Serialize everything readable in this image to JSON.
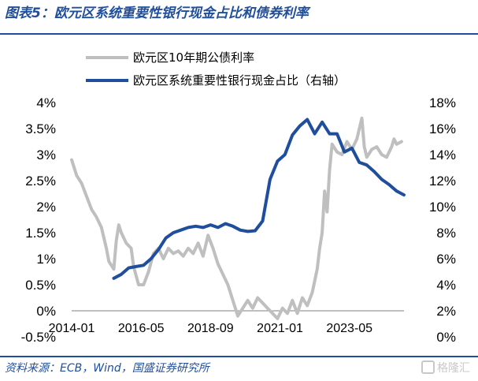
{
  "header": {
    "title": "图表5：欧元区系统重要性银行现金占比和债券利率"
  },
  "footer": {
    "source": "资料来源：ECB，Wind，国盛证券研究所",
    "watermark": "格隆汇"
  },
  "chart_data": {
    "type": "line",
    "legend": {
      "placement": "top",
      "entries": [
        "欧元区10年期公债利率",
        "欧元区系统重要性银行现金占比（右轴）"
      ]
    },
    "x_tick_labels": [
      "2014-01",
      "2016-05",
      "2018-09",
      "2021-01",
      "2023-05"
    ],
    "x_range": [
      "2014-01",
      "2025-03"
    ],
    "y_left": {
      "range": [
        -0.5,
        4
      ],
      "ticks": [
        -0.5,
        0,
        0.5,
        1,
        1.5,
        2,
        2.5,
        3,
        3.5,
        4
      ],
      "tick_labels": [
        "-0.5%",
        "0%",
        "0.5%",
        "1%",
        "1.5%",
        "2%",
        "2.5%",
        "3%",
        "3.5%",
        "4%"
      ]
    },
    "y_right": {
      "range": [
        0,
        18
      ],
      "ticks": [
        0,
        2,
        4,
        6,
        8,
        10,
        12,
        14,
        16,
        18
      ],
      "tick_labels": [
        "0%",
        "2%",
        "4%",
        "6%",
        "8%",
        "10%",
        "12%",
        "14%",
        "16%",
        "18%"
      ]
    },
    "grid": false,
    "colors": {
      "yield": "#bfbfbf",
      "cash": "#1f4e9c"
    },
    "series": [
      {
        "name": "欧元区10年期公债利率",
        "axis": "left",
        "points": [
          [
            "2014-01",
            2.9
          ],
          [
            "2014-03",
            2.6
          ],
          [
            "2014-05",
            2.45
          ],
          [
            "2014-07",
            2.2
          ],
          [
            "2014-09",
            1.95
          ],
          [
            "2014-11",
            1.8
          ],
          [
            "2015-01",
            1.6
          ],
          [
            "2015-03",
            1.2
          ],
          [
            "2015-04",
            0.95
          ],
          [
            "2015-06",
            0.8
          ],
          [
            "2015-07",
            1.35
          ],
          [
            "2015-08",
            1.65
          ],
          [
            "2015-09",
            1.5
          ],
          [
            "2015-11",
            1.3
          ],
          [
            "2016-01",
            1.2
          ],
          [
            "2016-02",
            0.85
          ],
          [
            "2016-04",
            0.5
          ],
          [
            "2016-06",
            0.5
          ],
          [
            "2016-08",
            0.75
          ],
          [
            "2016-10",
            1.1
          ],
          [
            "2016-12",
            1.2
          ],
          [
            "2017-02",
            1.0
          ],
          [
            "2017-04",
            1.2
          ],
          [
            "2017-06",
            1.1
          ],
          [
            "2017-08",
            1.15
          ],
          [
            "2017-10",
            1.05
          ],
          [
            "2017-12",
            1.2
          ],
          [
            "2018-02",
            1.1
          ],
          [
            "2018-04",
            1.3
          ],
          [
            "2018-06",
            1.05
          ],
          [
            "2018-08",
            1.45
          ],
          [
            "2018-10",
            1.2
          ],
          [
            "2018-12",
            0.9
          ],
          [
            "2019-02",
            0.7
          ],
          [
            "2019-04",
            0.5
          ],
          [
            "2019-06",
            0.2
          ],
          [
            "2019-08",
            -0.1
          ],
          [
            "2019-10",
            0.05
          ],
          [
            "2019-12",
            0.2
          ],
          [
            "2020-02",
            0.05
          ],
          [
            "2020-04",
            0.25
          ],
          [
            "2020-06",
            0.15
          ],
          [
            "2020-08",
            0.05
          ],
          [
            "2020-10",
            -0.05
          ],
          [
            "2020-12",
            -0.15
          ],
          [
            "2021-02",
            0.05
          ],
          [
            "2021-04",
            -0.05
          ],
          [
            "2021-06",
            0.2
          ],
          [
            "2021-08",
            -0.05
          ],
          [
            "2021-10",
            0.25
          ],
          [
            "2021-12",
            0.1
          ],
          [
            "2022-02",
            0.35
          ],
          [
            "2022-04",
            0.8
          ],
          [
            "2022-05",
            1.2
          ],
          [
            "2022-06",
            1.5
          ],
          [
            "2022-07",
            2.3
          ],
          [
            "2022-08",
            1.9
          ],
          [
            "2022-09",
            2.7
          ],
          [
            "2022-10",
            3.2
          ],
          [
            "2022-12",
            3.05
          ],
          [
            "2023-02",
            3.0
          ],
          [
            "2023-04",
            3.25
          ],
          [
            "2023-06",
            3.1
          ],
          [
            "2023-08",
            3.3
          ],
          [
            "2023-10",
            3.7
          ],
          [
            "2023-11",
            3.15
          ],
          [
            "2023-12",
            2.95
          ],
          [
            "2024-02",
            3.1
          ],
          [
            "2024-04",
            3.15
          ],
          [
            "2024-06",
            3.0
          ],
          [
            "2024-08",
            2.95
          ],
          [
            "2024-10",
            3.15
          ],
          [
            "2024-11",
            3.3
          ],
          [
            "2024-12",
            3.2
          ],
          [
            "2025-02",
            3.25
          ]
        ]
      },
      {
        "name": "欧元区系统重要性银行现金占比（右轴）",
        "axis": "right",
        "points": [
          [
            "2015-06",
            4.5
          ],
          [
            "2015-09",
            4.8
          ],
          [
            "2015-12",
            5.3
          ],
          [
            "2016-03",
            5.4
          ],
          [
            "2016-06",
            5.5
          ],
          [
            "2016-09",
            6.0
          ],
          [
            "2016-12",
            6.7
          ],
          [
            "2017-03",
            7.6
          ],
          [
            "2017-06",
            8.0
          ],
          [
            "2017-09",
            8.2
          ],
          [
            "2017-12",
            8.4
          ],
          [
            "2018-03",
            8.5
          ],
          [
            "2018-06",
            8.4
          ],
          [
            "2018-09",
            8.6
          ],
          [
            "2018-12",
            8.4
          ],
          [
            "2019-03",
            8.7
          ],
          [
            "2019-06",
            8.5
          ],
          [
            "2019-09",
            8.2
          ],
          [
            "2019-12",
            8.1
          ],
          [
            "2020-03",
            8.15
          ],
          [
            "2020-06",
            8.9
          ],
          [
            "2020-09",
            12.1
          ],
          [
            "2020-12",
            13.5
          ],
          [
            "2021-03",
            14.0
          ],
          [
            "2021-06",
            15.5
          ],
          [
            "2021-09",
            16.2
          ],
          [
            "2021-12",
            16.7
          ],
          [
            "2022-03",
            15.6
          ],
          [
            "2022-06",
            16.5
          ],
          [
            "2022-09",
            15.6
          ],
          [
            "2022-12",
            15.6
          ],
          [
            "2023-03",
            14.2
          ],
          [
            "2023-06",
            14.5
          ],
          [
            "2023-09",
            13.4
          ],
          [
            "2023-12",
            13.2
          ],
          [
            "2024-03",
            12.7
          ],
          [
            "2024-06",
            12.1
          ],
          [
            "2024-09",
            11.7
          ],
          [
            "2024-12",
            11.2
          ],
          [
            "2025-03",
            10.9
          ]
        ]
      }
    ]
  }
}
